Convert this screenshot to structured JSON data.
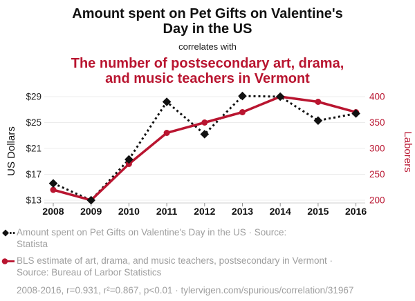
{
  "colors": {
    "series_black": "#111111",
    "series_red": "#b91530",
    "legend_gray": "#9e9e9e",
    "gridline": "#ececec"
  },
  "header": {
    "title_black_lines": [
      "Amount spent on Pet Gifts on Valentine's",
      "Day in the US"
    ],
    "connector": "correlates with",
    "title_red_lines": [
      "The number of postsecondary art, drama,",
      "and music teachers in Vermont"
    ]
  },
  "chart_data": {
    "type": "line",
    "title": "Amount spent on Pet Gifts on Valentine's Day in the US",
    "subtitle_connector": "correlates with",
    "title2": "The number of postsecondary art, drama, and music teachers in Vermont",
    "x": [
      2008,
      2009,
      2010,
      2011,
      2012,
      2013,
      2014,
      2015,
      2016
    ],
    "series": [
      {
        "name": "Amount spent on Pet Gifts on Valentine's Day in the US",
        "source": "Statista",
        "axis": "left",
        "color": "#111111",
        "marker": "diamond",
        "line_style": "dotted",
        "values": [
          15.6,
          13.0,
          19.3,
          28.2,
          23.2,
          29.1,
          29.0,
          25.3,
          26.4
        ]
      },
      {
        "name": "BLS estimate of art, drama, and music teachers, postsecondary in Vermont",
        "source": "Bureau of Larbor Statistics",
        "axis": "right",
        "color": "#b91530",
        "marker": "circle",
        "line_style": "solid",
        "values": [
          220,
          200,
          270,
          330,
          350,
          370,
          400,
          390,
          370
        ]
      }
    ],
    "left_axis": {
      "label": "US Dollars",
      "tick_prefix": "$",
      "ticks": [
        13,
        17,
        21,
        25,
        29
      ],
      "range": [
        13,
        29
      ]
    },
    "right_axis": {
      "label": "Laborers",
      "ticks": [
        200,
        250,
        300,
        350,
        400
      ],
      "range": [
        200,
        400
      ]
    },
    "grid": "horizontal",
    "legend_position": "bottom"
  },
  "legend": {
    "items": [
      {
        "icon": "black-diamond-dashed-line",
        "lines": [
          "Amount spent on Pet Gifts on Valentine's Day in the US · Source:",
          "Statista"
        ]
      },
      {
        "icon": "red-circle-solid-line",
        "lines": [
          "BLS estimate of art, drama, and music teachers, postsecondary in Vermont ·",
          "Source: Bureau of Larbor Statistics"
        ]
      }
    ]
  },
  "footer": {
    "stats": "2008-2016, r=0.931, r²=0.867, p<0.01 · tylervigen.com/spurious/correlation/31967"
  }
}
